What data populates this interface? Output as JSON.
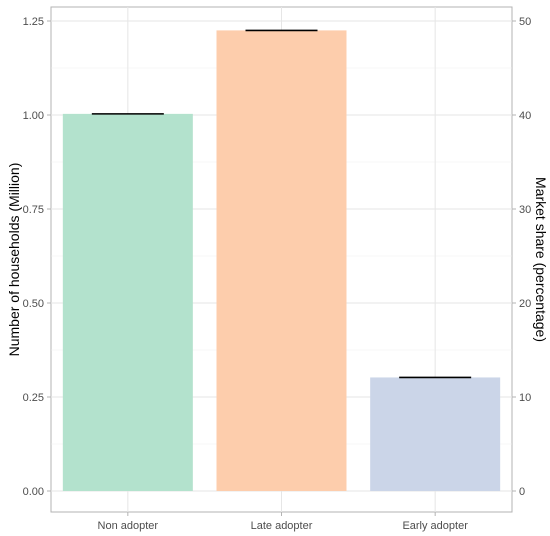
{
  "chart_data": {
    "type": "bar",
    "categories": [
      "Non adopter",
      "Late adopter",
      "Early adopter"
    ],
    "values": [
      1.003,
      1.225,
      0.302
    ],
    "colors": [
      "#b3e2cd",
      "#fdcdac",
      "#cbd5e8"
    ],
    "error_bar": true,
    "xlabel": "",
    "ylabel": "Number of households (Million)",
    "ylim": [
      0,
      1.25
    ],
    "yticks": [
      "0.00",
      "0.25",
      "0.50",
      "0.75",
      "1.00",
      "1.25"
    ],
    "y2label": "Market share (percentage)",
    "y2lim": [
      0,
      50
    ],
    "y2ticks": [
      "0",
      "10",
      "20",
      "30",
      "40",
      "50"
    ],
    "grid": true,
    "legend": "none"
  }
}
